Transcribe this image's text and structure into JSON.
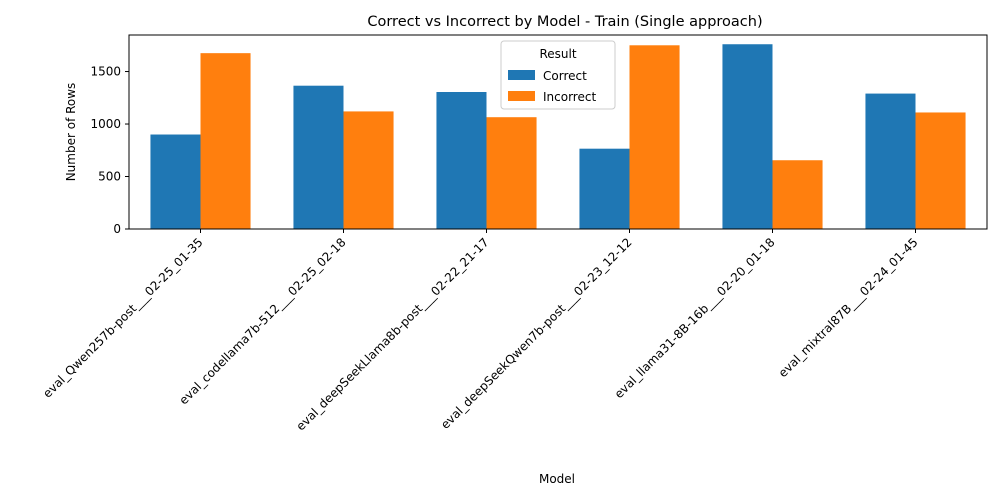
{
  "chart_data": {
    "type": "bar",
    "title": "Correct vs Incorrect by Model - Train (Single approach)",
    "xlabel": "Model",
    "ylabel": "Number of Rows",
    "categories": [
      "eval_Qwen257b-post___02-25_01-35",
      "eval_codellama7b-512___02-25_02-18",
      "eval_deepSeekLlama8b-post___02-22_21-17",
      "eval_deepSeekQwen7b-post___02-23_12-12",
      "eval_llama31-8B-16b___02-20_01-18",
      "eval_mixtral87B___02-24_01-45"
    ],
    "series": [
      {
        "name": "Correct",
        "color": "#1f77b4",
        "values": [
          900,
          1365,
          1305,
          765,
          1760,
          1290
        ]
      },
      {
        "name": "Incorrect",
        "color": "#ff7f0e",
        "values": [
          1675,
          1120,
          1065,
          1750,
          655,
          1110
        ]
      }
    ],
    "ylim": [
      0,
      1848
    ],
    "yticks": [
      0,
      500,
      1000,
      1500
    ],
    "grid": false,
    "legend": {
      "title": "Result",
      "placement": "top-center"
    }
  }
}
